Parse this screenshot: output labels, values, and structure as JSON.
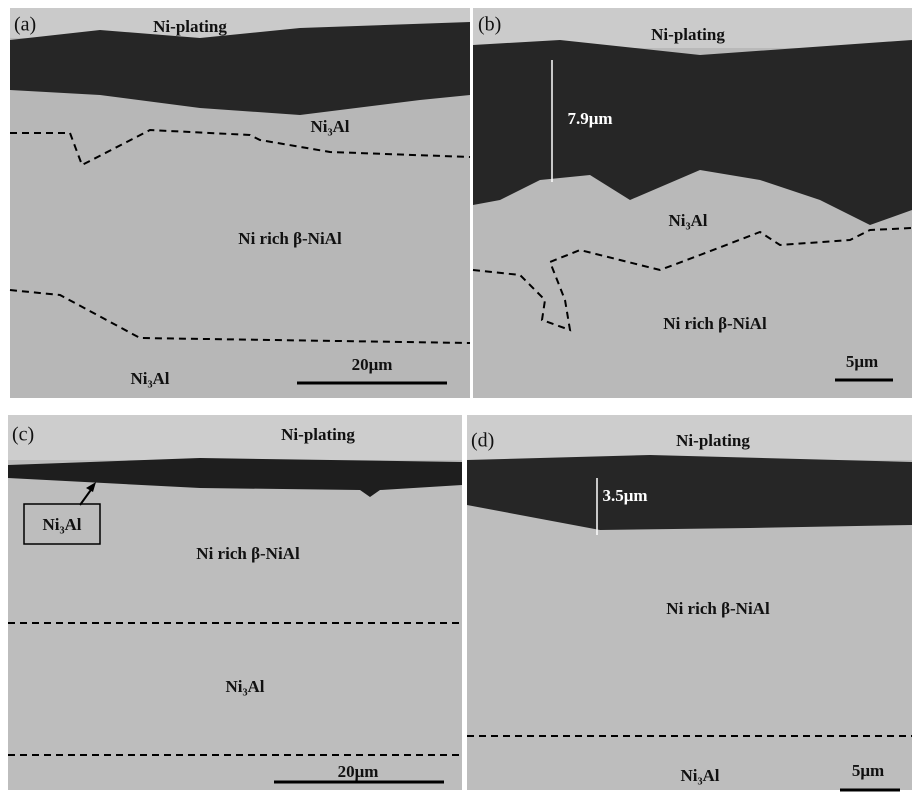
{
  "panels": [
    {
      "label": "(a)",
      "top": "Ni-plating",
      "texts": [
        "Ni₃Al",
        "Ni rich β-NiAl",
        "Ni₃Al"
      ],
      "scale_bar": "20μm"
    },
    {
      "label": "(b)",
      "top": "Ni-plating",
      "texts": [
        "Ni₃Al",
        "Ni rich β-NiAl"
      ],
      "measurement": "7.9μm",
      "scale_bar": "5μm"
    },
    {
      "label": "(c)",
      "top": "Ni-plating",
      "texts": [
        "Ni₃Al",
        "Ni rich β-NiAl",
        "Ni₃Al"
      ],
      "scale_bar": "20μm"
    },
    {
      "label": "(d)",
      "top": "Ni-plating",
      "texts": [
        "Ni rich β-NiAl",
        "Ni₃Al"
      ],
      "measurement": "3.5μm",
      "scale_bar": "5μm"
    }
  ]
}
